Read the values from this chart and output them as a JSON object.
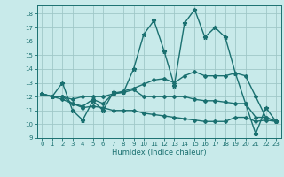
{
  "title": "",
  "xlabel": "Humidex (Indice chaleur)",
  "ylabel": "",
  "background_color": "#c8eaea",
  "grid_color": "#a0c8c8",
  "line_color": "#1a7070",
  "xlim": [
    -0.5,
    23.5
  ],
  "ylim": [
    9,
    18.6
  ],
  "yticks": [
    9,
    10,
    11,
    12,
    13,
    14,
    15,
    16,
    17,
    18
  ],
  "xticks": [
    0,
    1,
    2,
    3,
    4,
    5,
    6,
    7,
    8,
    9,
    10,
    11,
    12,
    13,
    14,
    15,
    16,
    17,
    18,
    19,
    20,
    21,
    22,
    23
  ],
  "series": [
    {
      "x": [
        0,
        1,
        2,
        3,
        4,
        5,
        6,
        7,
        8,
        9,
        10,
        11,
        12,
        13,
        14,
        15,
        16,
        17,
        18,
        19,
        20,
        21,
        22,
        23
      ],
      "y": [
        12.2,
        12.0,
        13.0,
        11.0,
        10.3,
        11.7,
        11.0,
        12.3,
        12.3,
        14.0,
        16.5,
        17.5,
        15.3,
        12.8,
        17.3,
        18.3,
        16.3,
        17.0,
        16.3,
        13.7,
        11.5,
        9.3,
        11.2,
        10.2
      ],
      "marker": "*",
      "markersize": 3.5,
      "linewidth": 1.0
    },
    {
      "x": [
        0,
        1,
        2,
        3,
        4,
        5,
        6,
        7,
        8,
        9,
        10,
        11,
        12,
        13,
        14,
        15,
        16,
        17,
        18,
        19,
        20,
        21,
        22,
        23
      ],
      "y": [
        12.2,
        12.0,
        12.0,
        11.8,
        12.0,
        12.0,
        12.0,
        12.2,
        12.4,
        12.6,
        12.9,
        13.2,
        13.3,
        13.0,
        13.5,
        13.8,
        13.5,
        13.5,
        13.5,
        13.7,
        13.5,
        12.0,
        10.5,
        10.2
      ],
      "marker": "D",
      "markersize": 2.0,
      "linewidth": 1.0
    },
    {
      "x": [
        0,
        1,
        2,
        3,
        4,
        5,
        6,
        7,
        8,
        9,
        10,
        11,
        12,
        13,
        14,
        15,
        16,
        17,
        18,
        19,
        20,
        21,
        22,
        23
      ],
      "y": [
        12.2,
        12.0,
        12.0,
        11.5,
        11.3,
        11.8,
        11.5,
        12.2,
        12.3,
        12.5,
        12.0,
        12.0,
        12.0,
        12.0,
        12.0,
        11.8,
        11.7,
        11.7,
        11.6,
        11.5,
        11.5,
        10.5,
        10.5,
        10.2
      ],
      "marker": "D",
      "markersize": 2.0,
      "linewidth": 1.0
    },
    {
      "x": [
        0,
        1,
        2,
        3,
        4,
        5,
        6,
        7,
        8,
        9,
        10,
        11,
        12,
        13,
        14,
        15,
        16,
        17,
        18,
        19,
        20,
        21,
        22,
        23
      ],
      "y": [
        12.2,
        12.0,
        11.8,
        11.5,
        11.2,
        11.3,
        11.2,
        11.0,
        11.0,
        11.0,
        10.8,
        10.7,
        10.6,
        10.5,
        10.4,
        10.3,
        10.2,
        10.2,
        10.2,
        10.5,
        10.5,
        10.2,
        10.3,
        10.2
      ],
      "marker": "D",
      "markersize": 2.0,
      "linewidth": 1.0
    }
  ]
}
